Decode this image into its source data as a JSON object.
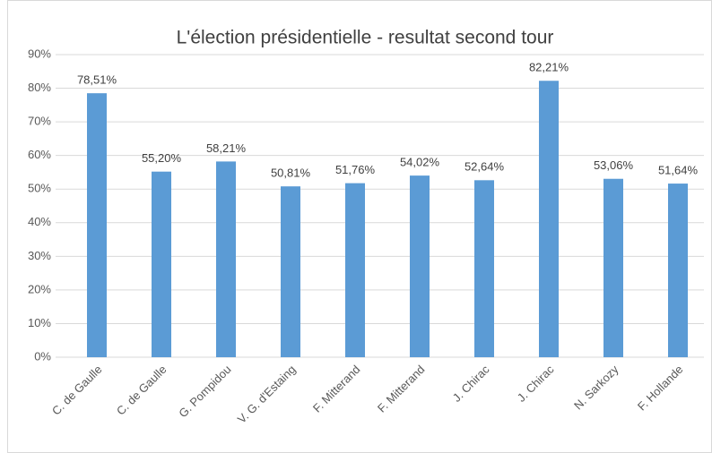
{
  "chart_data": {
    "type": "bar",
    "title": "L'élection présidentielle - resultat second tour",
    "categories": [
      "C. de Gaulle",
      "C. de Gaulle",
      "G. Pompidou",
      "V. G. d'Estaing",
      "F. Mitterand",
      "F. Mitterand",
      "J. Chirac",
      "J. Chirac",
      "N. Sarkozy",
      "F. Hollande"
    ],
    "values": [
      78.51,
      55.2,
      58.21,
      50.81,
      51.76,
      54.02,
      52.64,
      82.21,
      53.06,
      51.64
    ],
    "value_labels": [
      "78,51%",
      "55,20%",
      "58,21%",
      "50,81%",
      "51,76%",
      "54,02%",
      "52,64%",
      "82,21%",
      "53,06%",
      "51,64%"
    ],
    "color": "#5b9bd5",
    "ylim": [
      0,
      90
    ],
    "yticks": [
      {
        "value": 0,
        "label": "0%"
      },
      {
        "value": 10,
        "label": "10%"
      },
      {
        "value": 20,
        "label": "20%"
      },
      {
        "value": 30,
        "label": "30%"
      },
      {
        "value": 40,
        "label": "40%"
      },
      {
        "value": 50,
        "label": "50%"
      },
      {
        "value": 60,
        "label": "60%"
      },
      {
        "value": 70,
        "label": "70%"
      },
      {
        "value": 80,
        "label": "80%"
      },
      {
        "value": 90,
        "label": "90%"
      }
    ],
    "grid": true
  }
}
